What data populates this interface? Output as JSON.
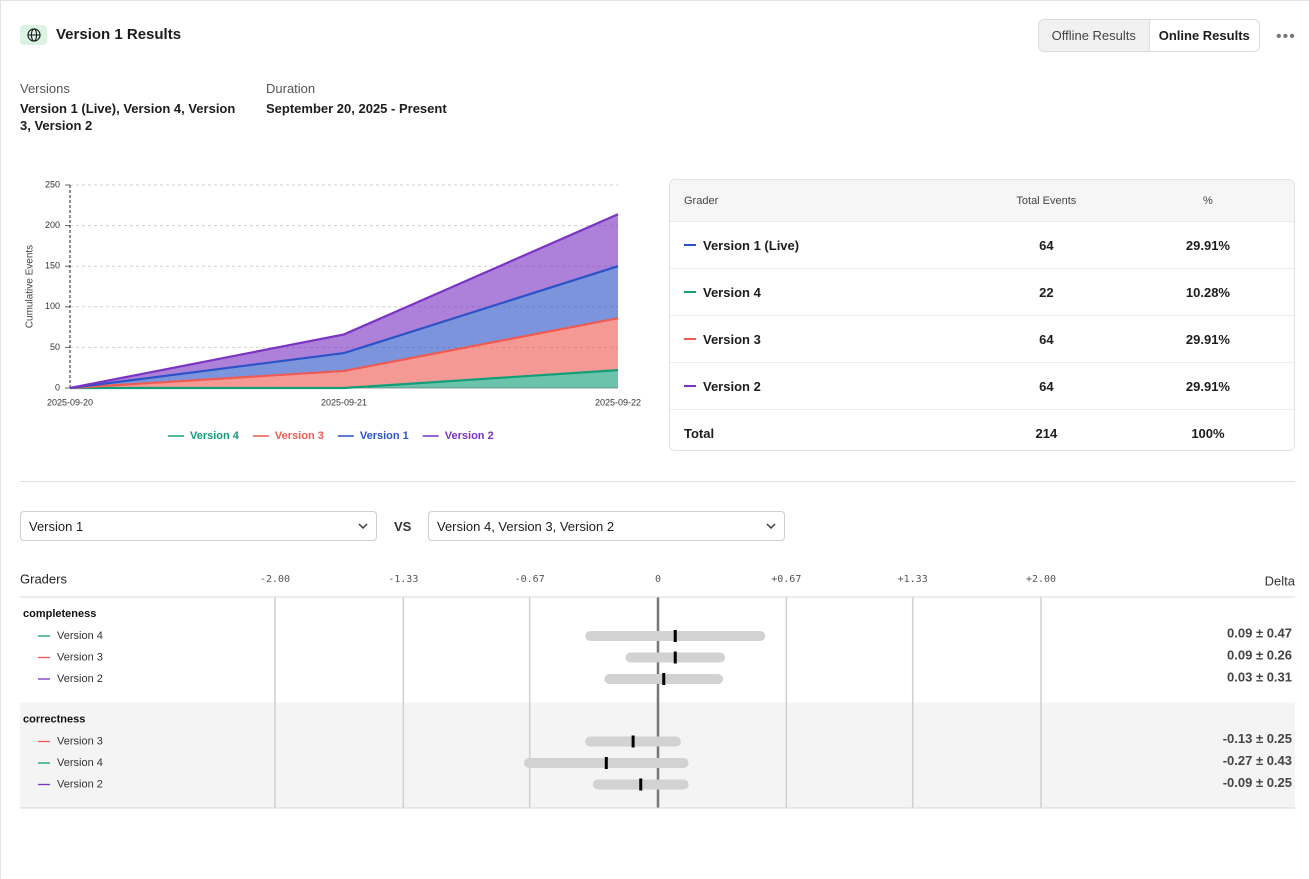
{
  "header": {
    "title": "Version 1 Results",
    "tabs": [
      "Offline Results",
      "Online Results"
    ]
  },
  "meta": {
    "versions_label": "Versions",
    "versions": "Version 1 (Live), Version 4, Version 3, Version 2",
    "duration_label": "Duration",
    "duration": "September 20, 2025 - Present"
  },
  "chart_data": [
    {
      "type": "stacked_area",
      "y_label": "Cumulative Events",
      "categories": [
        "2025-09-20",
        "2025-09-21",
        "2025-09-22"
      ],
      "series": [
        {
          "name": "Version 4",
          "color": "#129e78",
          "values": [
            0,
            0,
            22
          ]
        },
        {
          "name": "Version 3",
          "color": "#ef5b52",
          "values": [
            0,
            21,
            64
          ]
        },
        {
          "name": "Version 1",
          "color": "#2b52c6",
          "values": [
            0,
            22,
            64
          ]
        },
        {
          "name": "Version 2",
          "color": "#7a33c2",
          "values": [
            0,
            23,
            64
          ]
        }
      ],
      "ylim": [
        0,
        250
      ],
      "yticks": [
        0,
        50,
        100,
        150,
        200,
        250
      ],
      "grid": true
    },
    {
      "type": "forest",
      "title": "Graders",
      "value_title": "Delta",
      "xlim": [
        -2,
        2
      ],
      "xticks": [
        {
          "value": -2,
          "label": "-2.00"
        },
        {
          "value": -1.33,
          "label": "-1.33"
        },
        {
          "value": -0.67,
          "label": "-0.67"
        },
        0,
        {
          "value": 0.67,
          "label": "+0.67"
        },
        {
          "value": 1.33,
          "label": "+1.33"
        },
        {
          "value": 2,
          "label": "+2.00"
        }
      ],
      "grid": true,
      "groups": [
        {
          "name": "completeness",
          "rows": [
            "Version 4",
            "Version 3",
            "Version 2"
          ],
          "colors": [
            "#129e78",
            "#ef5b52",
            "#7a33c2"
          ],
          "values": [
            0.09,
            0.09,
            0.03
          ],
          "errors": [
            0.47,
            0.26,
            0.31
          ],
          "value_labels": [
            "0.09 ± 0.47",
            "0.09 ± 0.26",
            "0.03 ± 0.31"
          ]
        },
        {
          "name": "correctness",
          "rows": [
            "Version 3",
            "Version 4",
            "Version 2"
          ],
          "colors": [
            "#ef5b52",
            "#129e78",
            "#7a33c2"
          ],
          "values": [
            -0.13,
            -0.27,
            -0.09
          ],
          "errors": [
            0.25,
            0.43,
            0.25
          ],
          "value_labels": [
            "-0.13 ± 0.25",
            "-0.27 ± 0.43",
            "-0.09 ± 0.25"
          ]
        }
      ]
    }
  ],
  "table": {
    "columns": [
      "Grader",
      "Total Events",
      "%"
    ],
    "rows": [
      {
        "color": "#2b52c6",
        "cells": [
          "Version 1 (Live)",
          "64",
          "29.91%"
        ]
      },
      {
        "color": "#129e78",
        "cells": [
          "Version 4",
          "22",
          "10.28%"
        ]
      },
      {
        "color": "#ef5b52",
        "cells": [
          "Version 3",
          "64",
          "29.91%"
        ]
      },
      {
        "color": "#7a33c2",
        "cells": [
          "Version 2",
          "64",
          "29.91%"
        ]
      },
      {
        "cells": [
          "Total",
          "214",
          "100%"
        ]
      }
    ]
  },
  "comparison": {
    "base": "Version 1",
    "vs": "VS",
    "targets": "Version 4, Version 3, Version 2"
  }
}
